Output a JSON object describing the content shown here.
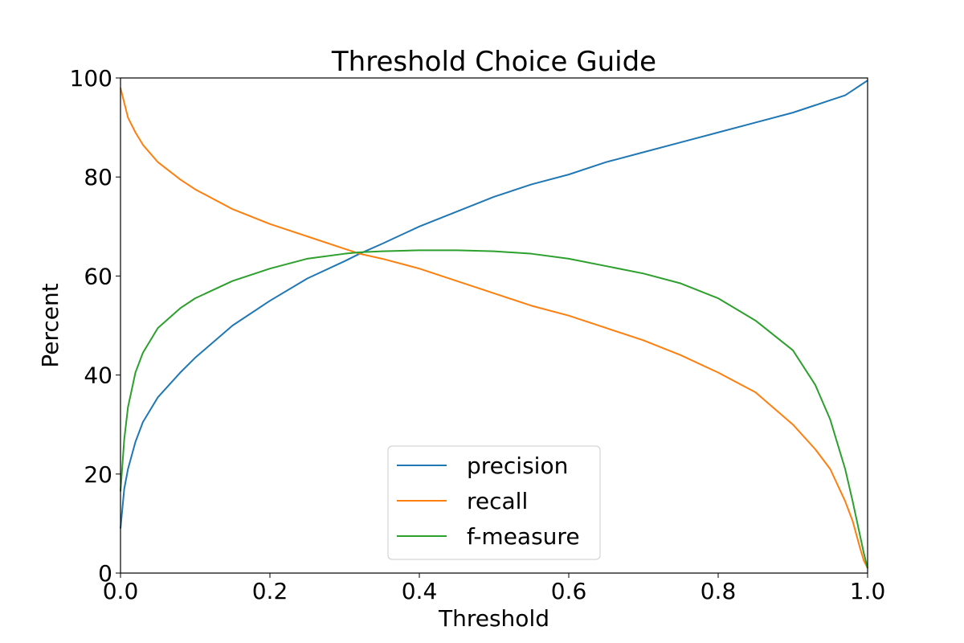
{
  "chart_data": {
    "type": "line",
    "title": "Threshold Choice Guide",
    "xlabel": "Threshold",
    "ylabel": "Percent",
    "xlim": [
      0.0,
      1.0
    ],
    "ylim": [
      0,
      100
    ],
    "xticks": [
      "0.0",
      "0.2",
      "0.4",
      "0.6",
      "0.8",
      "1.0"
    ],
    "yticks": [
      "0",
      "20",
      "40",
      "60",
      "80",
      "100"
    ],
    "grid": false,
    "legend_position": "lower-center",
    "x": [
      0.0,
      0.005,
      0.01,
      0.02,
      0.03,
      0.05,
      0.08,
      0.1,
      0.15,
      0.2,
      0.25,
      0.3,
      0.32,
      0.35,
      0.4,
      0.45,
      0.5,
      0.55,
      0.6,
      0.65,
      0.7,
      0.75,
      0.8,
      0.85,
      0.9,
      0.93,
      0.95,
      0.97,
      0.98,
      0.99,
      0.995,
      1.0
    ],
    "series": [
      {
        "name": "precision",
        "color": "#1f77b4",
        "values": [
          9.0,
          17.0,
          21.0,
          26.5,
          30.5,
          35.5,
          40.5,
          43.5,
          50.0,
          55.0,
          59.5,
          63.0,
          64.5,
          66.5,
          70.0,
          73.0,
          76.0,
          78.5,
          80.5,
          83.0,
          85.0,
          87.0,
          89.0,
          91.0,
          93.0,
          94.5,
          95.5,
          96.5,
          97.5,
          98.5,
          99.0,
          99.5
        ]
      },
      {
        "name": "recall",
        "color": "#ff7f0e",
        "values": [
          98.0,
          95.0,
          92.0,
          89.0,
          86.5,
          83.0,
          79.5,
          77.5,
          73.5,
          70.5,
          68.0,
          65.5,
          64.5,
          63.5,
          61.5,
          59.0,
          56.5,
          54.0,
          52.0,
          49.5,
          47.0,
          44.0,
          40.5,
          36.5,
          30.0,
          25.0,
          21.0,
          14.5,
          10.5,
          5.0,
          2.5,
          1.0
        ]
      },
      {
        "name": "f-measure",
        "color": "#2ca02c",
        "values": [
          16.5,
          27.0,
          33.5,
          40.5,
          44.5,
          49.5,
          53.5,
          55.5,
          59.0,
          61.5,
          63.5,
          64.5,
          64.8,
          65.0,
          65.2,
          65.2,
          65.0,
          64.5,
          63.5,
          62.0,
          60.5,
          58.5,
          55.5,
          51.0,
          45.0,
          38.0,
          31.0,
          21.0,
          14.5,
          7.5,
          4.0,
          1.0
        ]
      }
    ]
  }
}
